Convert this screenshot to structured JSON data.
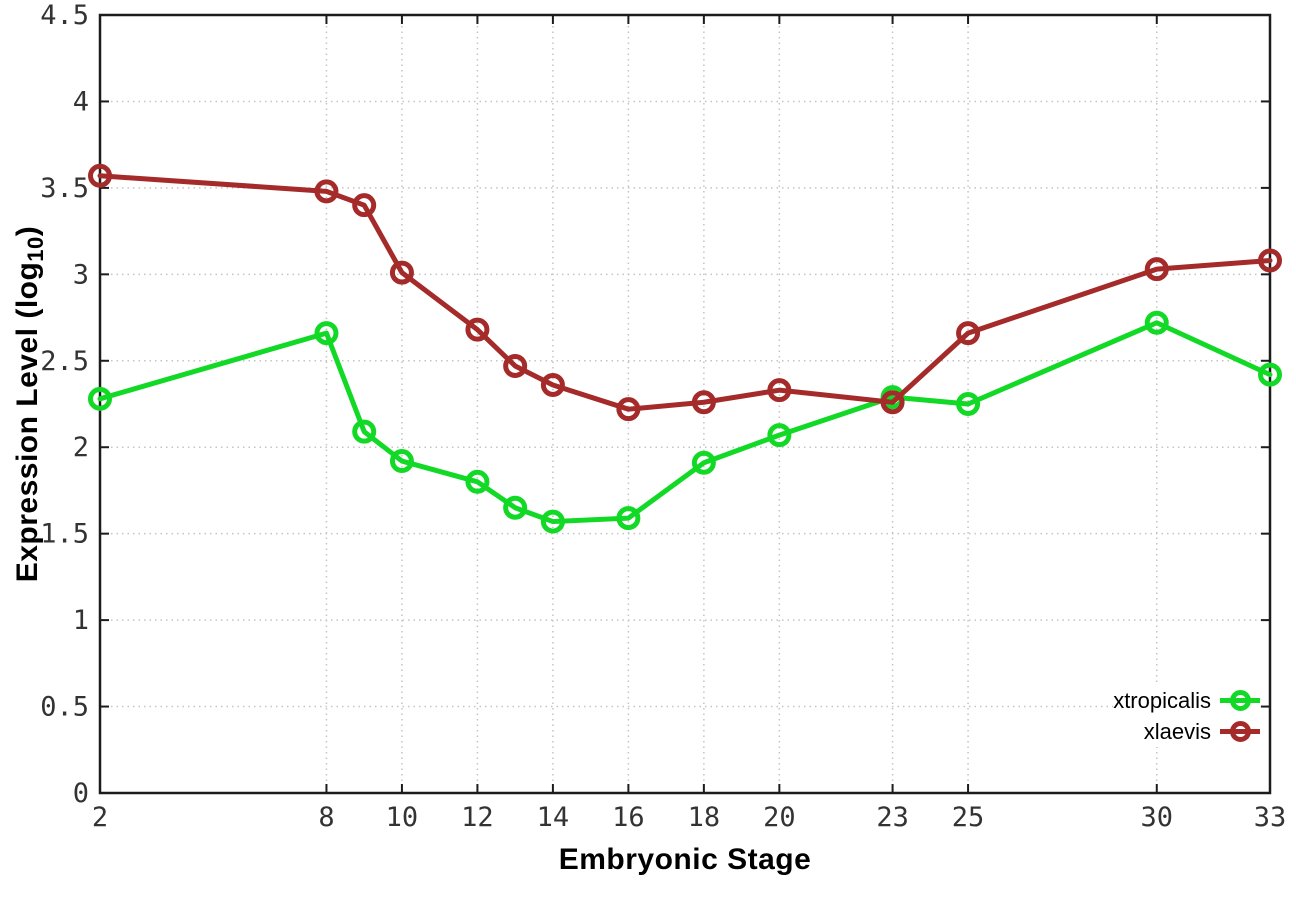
{
  "chart_data": {
    "type": "line",
    "title": "",
    "xlabel": "Embryonic Stage",
    "ylabel": {
      "main": "Expression Level (log",
      "sub": "10",
      "end": ")"
    },
    "xlim": [
      2,
      33
    ],
    "ylim": [
      0,
      4.5
    ],
    "grid": true,
    "x": [
      2,
      8,
      9,
      10,
      12,
      13,
      14,
      16,
      18,
      20,
      23,
      25,
      30,
      33
    ],
    "xticks": [
      2,
      8,
      10,
      12,
      14,
      16,
      18,
      20,
      23,
      25,
      30,
      33
    ],
    "xtick_labels": [
      "2",
      "8",
      "10",
      "12",
      "14",
      "16",
      "18",
      "20",
      "23",
      "25",
      "30",
      "33"
    ],
    "yticks": [
      0,
      0.5,
      1,
      1.5,
      2,
      2.5,
      3,
      3.5,
      4,
      4.5
    ],
    "ytick_labels": [
      "0",
      "0.5",
      "1",
      "1.5",
      "2",
      "2.5",
      "3",
      "3.5",
      "4",
      "4.5"
    ],
    "series": [
      {
        "name": "xtropicalis",
        "color": "#12d926",
        "values": [
          2.28,
          2.66,
          2.09,
          1.92,
          1.8,
          1.65,
          1.57,
          1.59,
          1.91,
          2.07,
          2.29,
          2.25,
          2.72,
          2.42
        ]
      },
      {
        "name": "xlaevis",
        "color": "#a52a2a",
        "values": [
          3.57,
          3.48,
          3.4,
          3.01,
          2.68,
          2.47,
          2.36,
          2.22,
          2.26,
          2.33,
          2.26,
          2.66,
          3.03,
          3.08
        ]
      }
    ],
    "legend": {
      "position": "bottom-right"
    },
    "style": {
      "grid_color": "#c4c4c4",
      "border_color": "#1c1c1c",
      "tick_label_color": "#333333",
      "line_width": 5,
      "marker_radius": 9.5,
      "marker_stroke": 5
    }
  }
}
